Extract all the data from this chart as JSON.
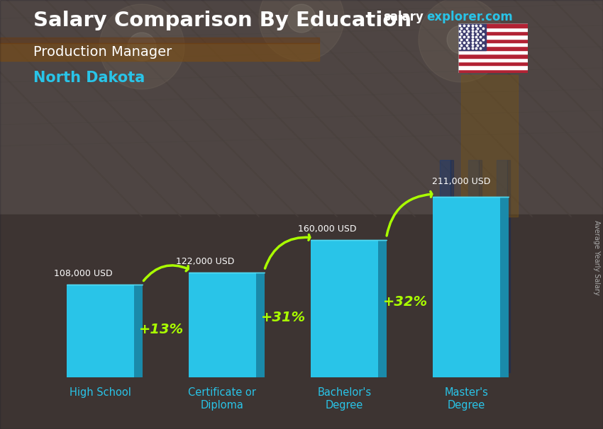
{
  "title_salary": "Salary Comparison By Education",
  "subtitle_job": "Production Manager",
  "subtitle_location": "North Dakota",
  "watermark_salary": "salary",
  "watermark_explorer": "explorer",
  "watermark_com": ".com",
  "ylabel": "Average Yearly Salary",
  "categories": [
    "High School",
    "Certificate or\nDiploma",
    "Bachelor's\nDegree",
    "Master's\nDegree"
  ],
  "values": [
    108000,
    122000,
    160000,
    211000
  ],
  "value_labels": [
    "108,000 USD",
    "122,000 USD",
    "160,000 USD",
    "211,000 USD"
  ],
  "pct_labels": [
    "+13%",
    "+31%",
    "+32%"
  ],
  "bar_main_color": "#29c4e8",
  "bar_right_color": "#1a8aaa",
  "bar_top_color": "#55ddf5",
  "title_color": "#ffffff",
  "subtitle_job_color": "#ffffff",
  "subtitle_loc_color": "#29c4e8",
  "value_label_color": "#ffffff",
  "pct_label_color": "#aaff00",
  "arrow_color": "#aaff00",
  "tick_label_color": "#29c4e8",
  "watermark_salary_color": "#ffffff",
  "watermark_explorer_color": "#29c4e8",
  "ylim": [
    0,
    260000
  ],
  "bar_width": 0.55,
  "bar_depth": 0.07
}
